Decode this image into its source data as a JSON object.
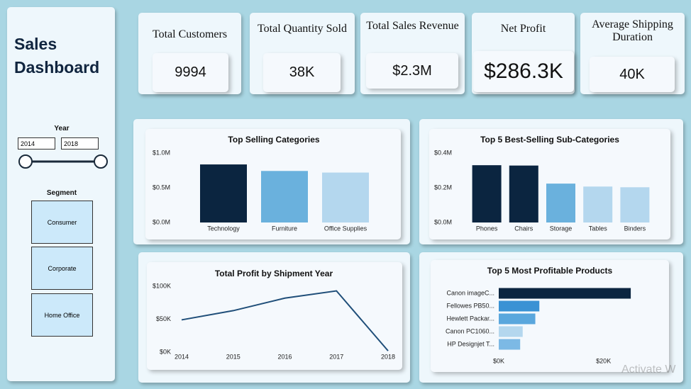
{
  "sidebar": {
    "title": "Sales Dashboard",
    "year_label": "Year",
    "year_from": "2014",
    "year_to": "2018",
    "segment_label": "Segment",
    "segments": [
      "Consumer",
      "Corporate",
      "Home Office"
    ]
  },
  "kpis": [
    {
      "title": "Total Customers",
      "value": "9994"
    },
    {
      "title": "Total Quantity Sold",
      "value": "38K"
    },
    {
      "title": "Total Sales Revenue",
      "value": "$2.3M"
    },
    {
      "title": "Net Profit",
      "value": "$286.3K"
    },
    {
      "title": "Average Shipping Duration",
      "value": "40K"
    }
  ],
  "chart_data": [
    {
      "type": "bar",
      "title": "Top Selling Categories",
      "categories": [
        "Technology",
        "Furniture",
        "Office Supplies"
      ],
      "values": [
        836000,
        742000,
        719000
      ],
      "colors": [
        "#0b2540",
        "#6ab1dd",
        "#b4d7ee"
      ],
      "ylim": [
        0,
        1000000
      ],
      "yticks": [
        {
          "value": 0,
          "label": "$0.0M"
        },
        {
          "value": 500000,
          "label": "$0.5M"
        },
        {
          "value": 1000000,
          "label": "$1.0M"
        }
      ]
    },
    {
      "type": "bar",
      "title": "Top 5 Best-Selling Sub-Categories",
      "categories": [
        "Phones",
        "Chairs",
        "Storage",
        "Tables",
        "Binders"
      ],
      "values": [
        330000,
        328000,
        224000,
        207000,
        203000
      ],
      "colors": [
        "#0b2540",
        "#0b2540",
        "#6ab1dd",
        "#b4d7ee",
        "#b4d7ee"
      ],
      "ylim": [
        0,
        400000
      ],
      "yticks": [
        {
          "value": 0,
          "label": "$0.0M"
        },
        {
          "value": 200000,
          "label": "$0.2M"
        },
        {
          "value": 400000,
          "label": "$0.4M"
        }
      ]
    },
    {
      "type": "line",
      "title": "Total Profit by Shipment Year",
      "x": [
        2014,
        2015,
        2016,
        2017,
        2018
      ],
      "values": [
        49000,
        63000,
        82000,
        93000,
        2000
      ],
      "color": "#1f4e79",
      "xlim": [
        2014,
        2018
      ],
      "xticks": [
        2014,
        2015,
        2016,
        2017,
        2018
      ],
      "ylim": [
        0,
        100000
      ],
      "yticks": [
        {
          "value": 0,
          "label": "$0K"
        },
        {
          "value": 50000,
          "label": "$50K"
        },
        {
          "value": 100000,
          "label": "$100K"
        }
      ]
    },
    {
      "type": "hbar",
      "title": "Top 5 Most Profitable Products",
      "categories": [
        "Canon imageC...",
        "Fellowes PB50...",
        "Hewlett Packar...",
        "Canon PC1060...",
        "HP Designjet T..."
      ],
      "values": [
        25200,
        7750,
        6980,
        4570,
        4090
      ],
      "colors": [
        "#0b2540",
        "#3a92d4",
        "#5aa7dd",
        "#b4d7ee",
        "#7cb9e5"
      ],
      "xlim": [
        0,
        26000
      ],
      "xticks": [
        {
          "value": 0,
          "label": "$0K"
        },
        {
          "value": 20000,
          "label": "$20K"
        }
      ]
    }
  ],
  "overlay": "Activate W"
}
